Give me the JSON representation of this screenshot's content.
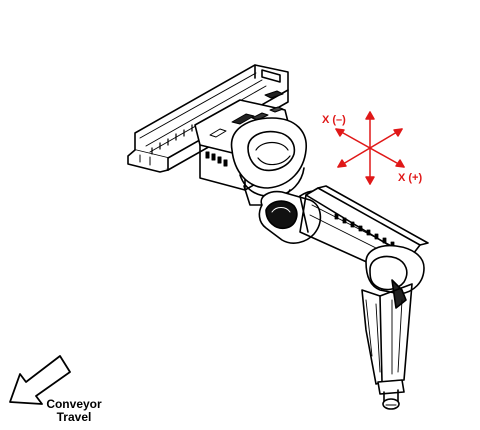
{
  "labels": {
    "x_minus": "X (–)",
    "x_plus": "X (+)",
    "conveyor_line1": "Conveyor",
    "conveyor_line2": "Travel"
  },
  "colors": {
    "axis": "#e01818",
    "line": "#000000",
    "background": "#ffffff"
  },
  "icons": {
    "axis_gizmo": "coordinate-axes-icon",
    "conveyor_arrow": "conveyor-direction-arrow-icon"
  }
}
